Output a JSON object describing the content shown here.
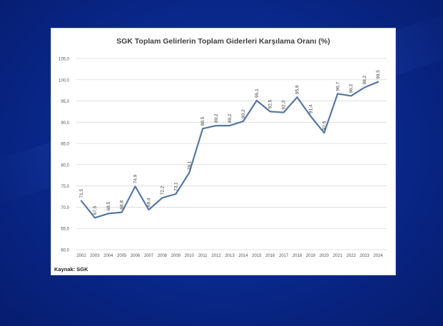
{
  "source_note": "Kaynak: SGK",
  "colors": {
    "line": "#5677a3",
    "grid": "#d9d9d9",
    "text": "#555555",
    "title": "#404040"
  },
  "chart_data": {
    "type": "line",
    "title": "SGK Toplam Gelirlerin Toplam Giderleri Karşılama Oranı (%)",
    "xlabel": "",
    "ylabel": "",
    "categories": [
      "2002",
      "2003",
      "2004",
      "2005",
      "2006",
      "2007",
      "2008",
      "2009",
      "2010",
      "2011",
      "2012",
      "2013",
      "2014",
      "2015",
      "2016",
      "2017",
      "2018",
      "2019",
      "2020",
      "2021",
      "2022",
      "2023",
      "2024"
    ],
    "series": [
      {
        "values": [
          71.5,
          67.5,
          68.5,
          68.8,
          74.9,
          69.4,
          72.2,
          73.1,
          78.1,
          88.5,
          89.2,
          89.2,
          90.2,
          95.1,
          92.5,
          92.3,
          95.9,
          91.4,
          87.5,
          96.7,
          96.2,
          98.2,
          99.5
        ],
        "labels": [
          "71,5",
          "67,5",
          "68,5",
          "68,8",
          "74,9",
          "69,4",
          "72,2",
          "73,1",
          "78,1",
          "88,5",
          "89,2",
          "89,2",
          "90,2",
          "95,1",
          "92,5",
          "92,3",
          "95,9",
          "91,4",
          "87,5",
          "96,7",
          "96,2",
          "98,2",
          "99,5"
        ]
      }
    ],
    "yticks": [
      60,
      65,
      70,
      75,
      80,
      85,
      90,
      95,
      100,
      105
    ],
    "ytick_labels": [
      "60,0",
      "65,0",
      "70,0",
      "75,0",
      "80,0",
      "85,0",
      "90,0",
      "95,0",
      "100,0",
      "105,0"
    ],
    "ylim": [
      60,
      105
    ],
    "grid": true,
    "legend": "none"
  }
}
